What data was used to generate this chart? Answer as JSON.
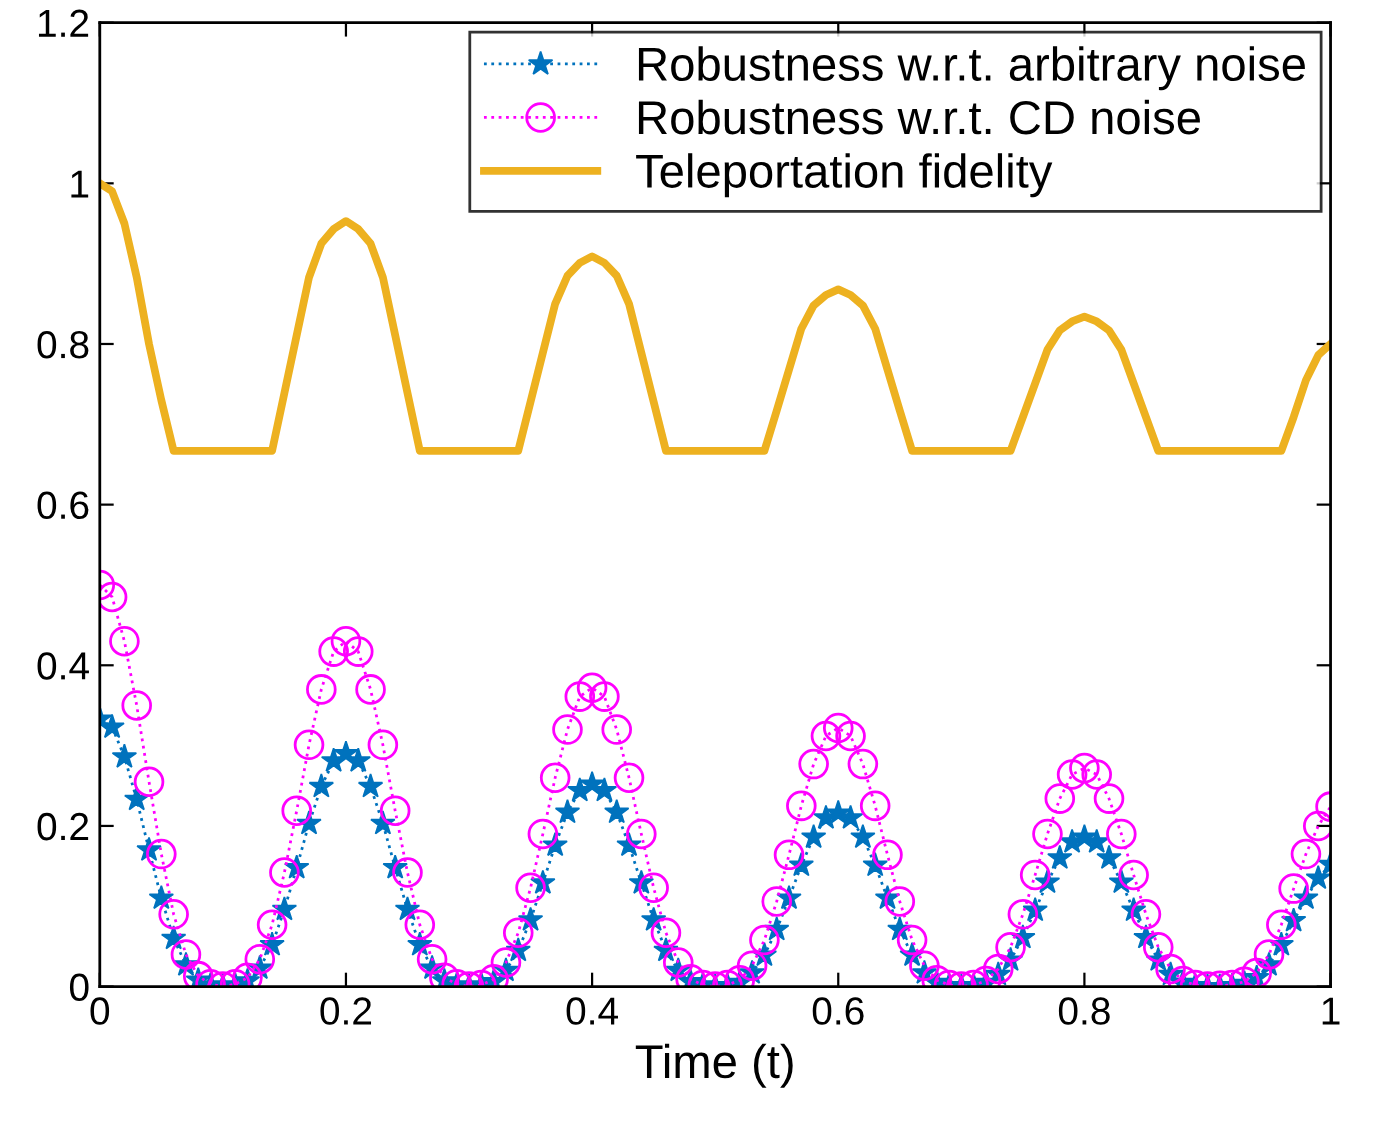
{
  "chart_data": {
    "type": "line",
    "xlabel": "Time (t)",
    "x": [
      0,
      0.01,
      0.02,
      0.03,
      0.04,
      0.05,
      0.06,
      0.07,
      0.08,
      0.09,
      0.1,
      0.11,
      0.12,
      0.13,
      0.14,
      0.15,
      0.16,
      0.17,
      0.18,
      0.19,
      0.2,
      0.21,
      0.22,
      0.23,
      0.24,
      0.25,
      0.26,
      0.27,
      0.28,
      0.29,
      0.3,
      0.31,
      0.32,
      0.33,
      0.34,
      0.35,
      0.36,
      0.37,
      0.38,
      0.39,
      0.4,
      0.41,
      0.42,
      0.43,
      0.44,
      0.45,
      0.46,
      0.47,
      0.48,
      0.49,
      0.5,
      0.51,
      0.52,
      0.53,
      0.54,
      0.55,
      0.56,
      0.57,
      0.58,
      0.59,
      0.6,
      0.61,
      0.62,
      0.63,
      0.64,
      0.65,
      0.66,
      0.67,
      0.68,
      0.69,
      0.7,
      0.71,
      0.72,
      0.73,
      0.74,
      0.75,
      0.76,
      0.77,
      0.78,
      0.79,
      0.8,
      0.81,
      0.82,
      0.83,
      0.84,
      0.85,
      0.86,
      0.87,
      0.88,
      0.89,
      0.9,
      0.91,
      0.92,
      0.93,
      0.94,
      0.95,
      0.96,
      0.97,
      0.98,
      0.99,
      1
    ],
    "series": [
      {
        "name": "Robustness w.r.t. arbitrary noise",
        "color": "#0072bd",
        "marker": "star",
        "line_style": "dotted",
        "values": [
          0.333,
          0.323,
          0.286,
          0.233,
          0.17,
          0.11,
          0.06,
          0.027,
          0.008,
          0.002,
          0,
          0.002,
          0.007,
          0.023,
          0.052,
          0.096,
          0.148,
          0.203,
          0.249,
          0.281,
          0.29,
          0.281,
          0.249,
          0.203,
          0.148,
          0.096,
          0.052,
          0.023,
          0.007,
          0.002,
          0,
          0.002,
          0.006,
          0.02,
          0.045,
          0.083,
          0.129,
          0.176,
          0.217,
          0.244,
          0.252,
          0.244,
          0.217,
          0.176,
          0.129,
          0.083,
          0.045,
          0.02,
          0.006,
          0.002,
          0,
          0.001,
          0.005,
          0.017,
          0.039,
          0.071,
          0.11,
          0.151,
          0.186,
          0.21,
          0.216,
          0.21,
          0.186,
          0.151,
          0.11,
          0.071,
          0.039,
          0.017,
          0.005,
          0.001,
          0,
          0.001,
          0.005,
          0.015,
          0.033,
          0.061,
          0.095,
          0.13,
          0.16,
          0.18,
          0.186,
          0.18,
          0.16,
          0.13,
          0.095,
          0.061,
          0.033,
          0.015,
          0.005,
          0.001,
          0,
          0,
          0.001,
          0.004,
          0.011,
          0.027,
          0.052,
          0.082,
          0.11,
          0.135,
          0.152
        ]
      },
      {
        "name": "Robustness w.r.t. CD noise",
        "color": "#ff00ff",
        "marker": "circle",
        "line_style": "dotted",
        "values": [
          0.5,
          0.485,
          0.43,
          0.35,
          0.255,
          0.165,
          0.09,
          0.04,
          0.013,
          0.003,
          0,
          0.003,
          0.011,
          0.034,
          0.077,
          0.142,
          0.219,
          0.301,
          0.37,
          0.417,
          0.43,
          0.417,
          0.37,
          0.301,
          0.219,
          0.142,
          0.077,
          0.034,
          0.011,
          0.003,
          0,
          0.002,
          0.009,
          0.03,
          0.067,
          0.123,
          0.19,
          0.26,
          0.32,
          0.361,
          0.372,
          0.361,
          0.32,
          0.26,
          0.19,
          0.123,
          0.067,
          0.03,
          0.009,
          0.002,
          0,
          0.002,
          0.008,
          0.026,
          0.058,
          0.106,
          0.164,
          0.225,
          0.277,
          0.312,
          0.322,
          0.312,
          0.277,
          0.225,
          0.164,
          0.106,
          0.058,
          0.026,
          0.008,
          0.002,
          0,
          0.002,
          0.007,
          0.022,
          0.049,
          0.09,
          0.139,
          0.19,
          0.234,
          0.264,
          0.272,
          0.264,
          0.234,
          0.19,
          0.139,
          0.09,
          0.049,
          0.022,
          0.007,
          0.002,
          0,
          0.001,
          0.002,
          0.006,
          0.017,
          0.04,
          0.077,
          0.122,
          0.165,
          0.2,
          0.224
        ]
      },
      {
        "name": "Teleportation fidelity",
        "color": "#edb120",
        "marker": "none",
        "line_style": "solid",
        "values": [
          1,
          0.99,
          0.95,
          0.883,
          0.8,
          0.73,
          0.667,
          0.667,
          0.667,
          0.667,
          0.667,
          0.667,
          0.667,
          0.667,
          0.667,
          0.739,
          0.811,
          0.883,
          0.925,
          0.943,
          0.953,
          0.943,
          0.925,
          0.883,
          0.811,
          0.739,
          0.667,
          0.667,
          0.667,
          0.667,
          0.667,
          0.667,
          0.667,
          0.667,
          0.667,
          0.728,
          0.789,
          0.85,
          0.885,
          0.901,
          0.909,
          0.901,
          0.885,
          0.85,
          0.789,
          0.728,
          0.667,
          0.667,
          0.667,
          0.667,
          0.667,
          0.667,
          0.667,
          0.667,
          0.667,
          0.717,
          0.768,
          0.819,
          0.848,
          0.861,
          0.868,
          0.861,
          0.848,
          0.819,
          0.768,
          0.717,
          0.667,
          0.667,
          0.667,
          0.667,
          0.667,
          0.667,
          0.667,
          0.667,
          0.667,
          0.709,
          0.751,
          0.793,
          0.817,
          0.828,
          0.834,
          0.828,
          0.817,
          0.793,
          0.751,
          0.709,
          0.667,
          0.667,
          0.667,
          0.667,
          0.667,
          0.667,
          0.667,
          0.667,
          0.667,
          0.667,
          0.667,
          0.709,
          0.755,
          0.786,
          0.8
        ]
      }
    ],
    "xlim": [
      0,
      1
    ],
    "ylim": [
      0,
      1.2
    ],
    "xticks": [
      0,
      0.2,
      0.4,
      0.6,
      0.8,
      1
    ],
    "yticks": [
      0,
      0.2,
      0.4,
      0.6,
      0.8,
      1,
      1.2
    ],
    "legend": "top right",
    "grid": false
  }
}
